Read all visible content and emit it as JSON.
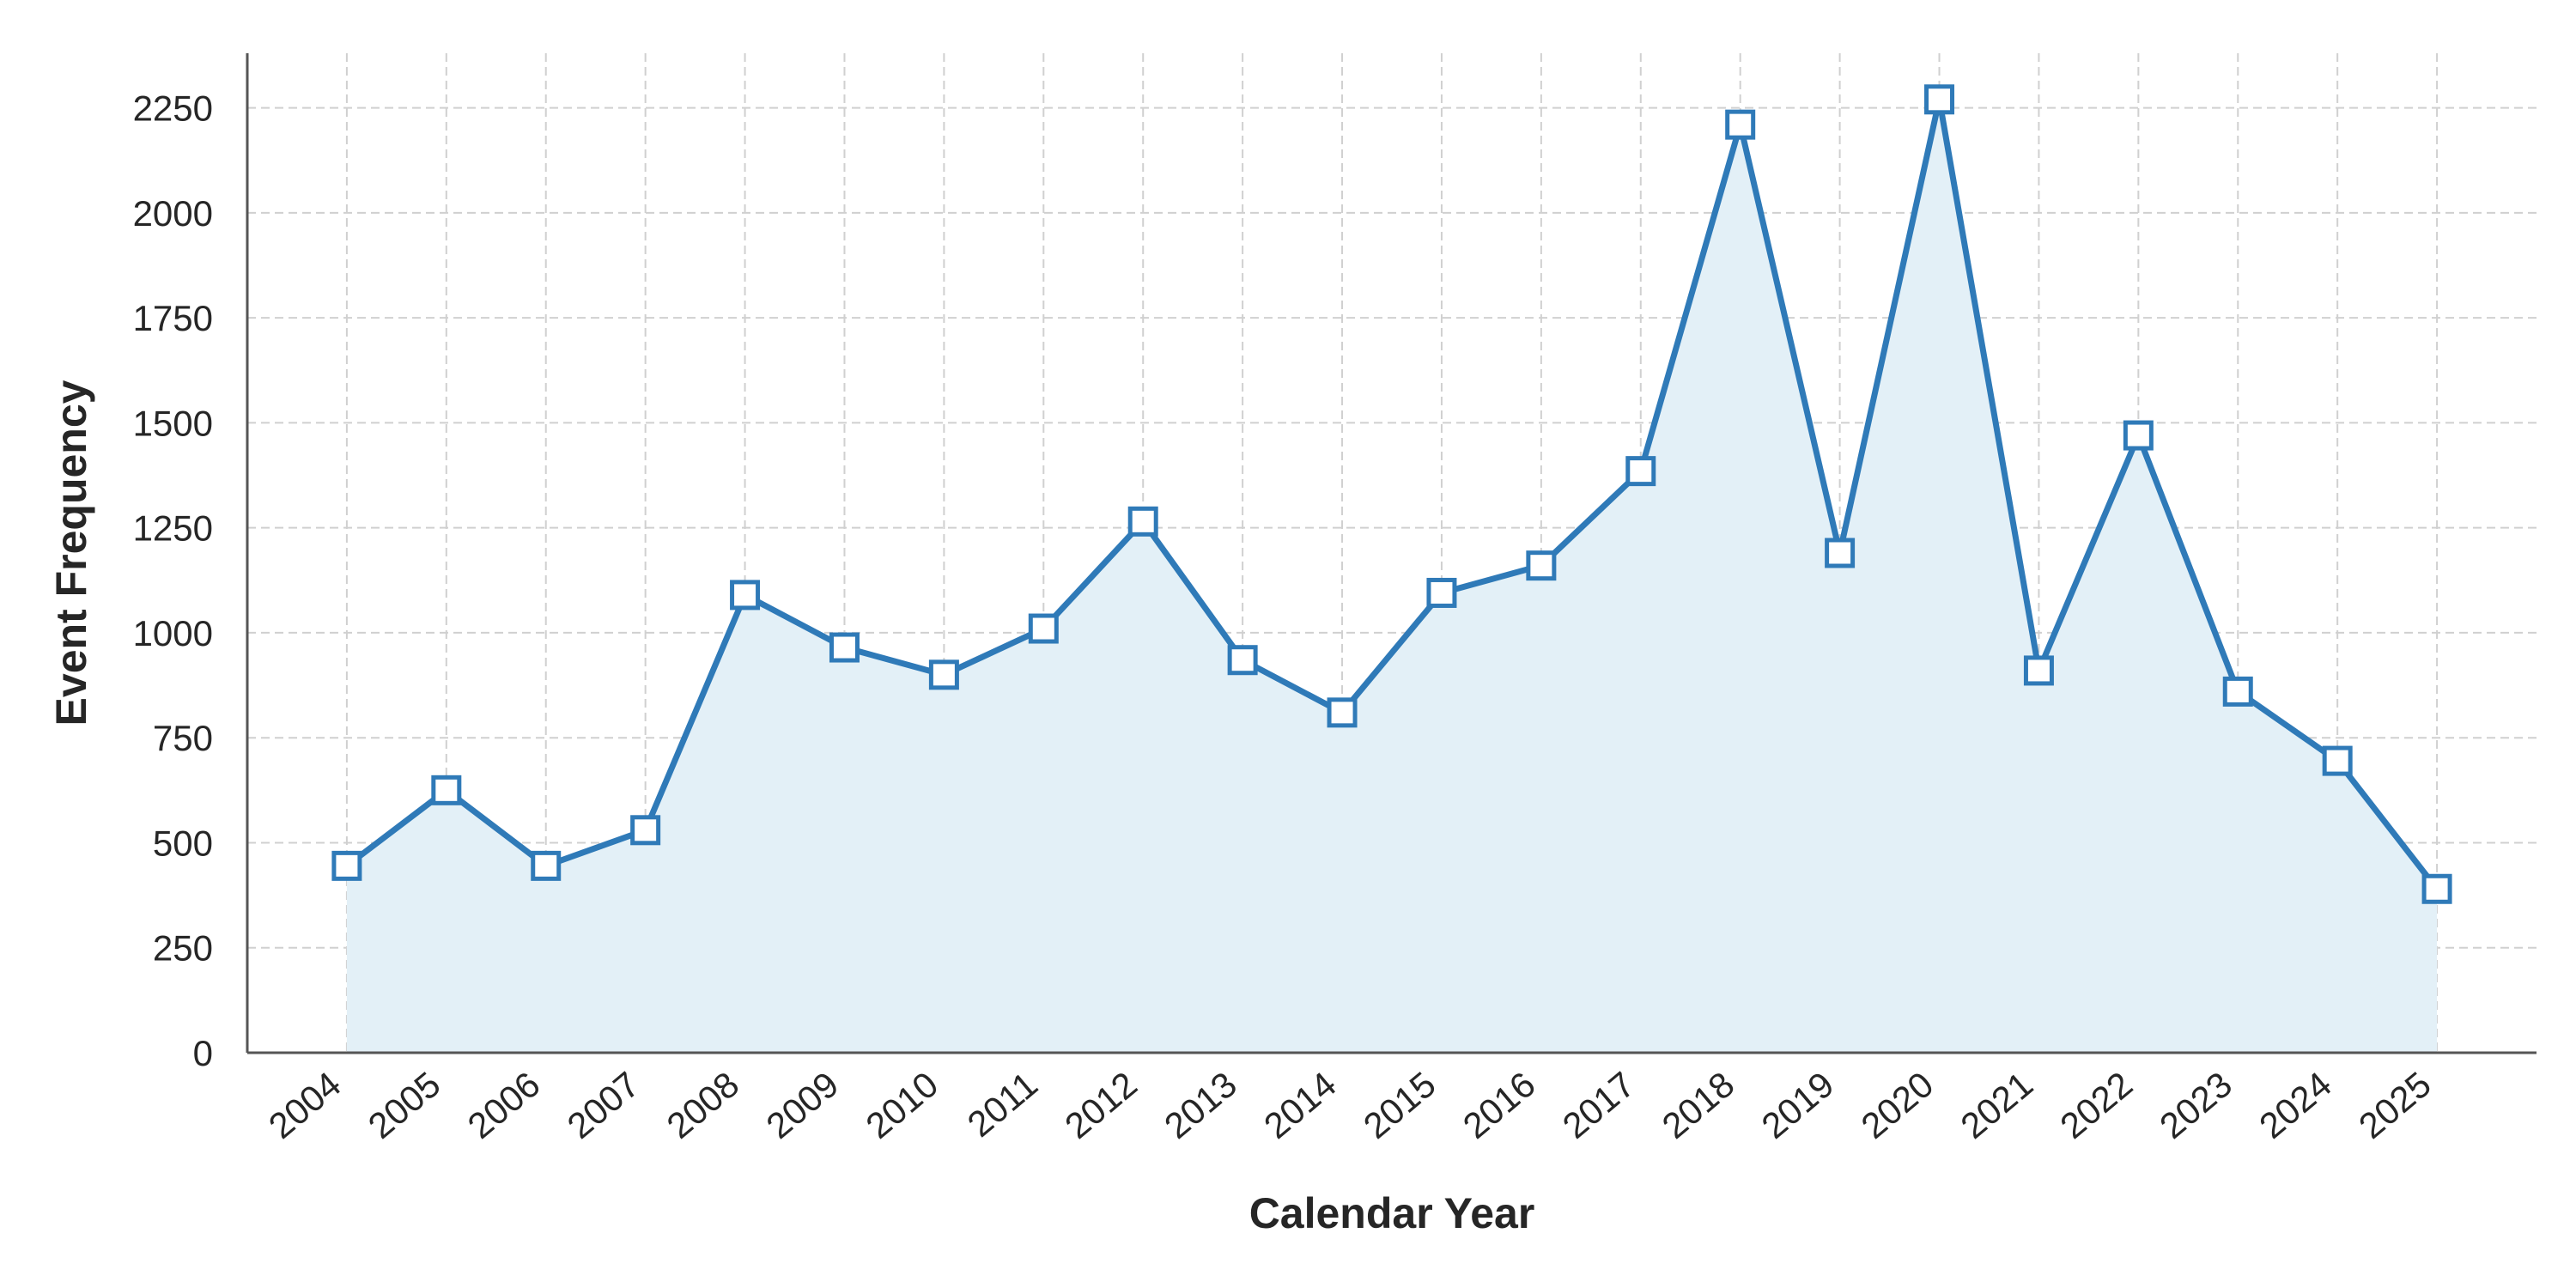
{
  "chart_data": {
    "type": "area",
    "title": "",
    "xlabel": "Calendar Year",
    "ylabel": "Event Frequency",
    "ylim": [
      0,
      2380
    ],
    "xlim": [
      2003,
      2026
    ],
    "yticks": [
      0,
      250,
      500,
      750,
      1000,
      1250,
      1500,
      1750,
      2000,
      2250
    ],
    "grid": true,
    "legend": "none",
    "x": [
      2004,
      2005,
      2006,
      2007,
      2008,
      2009,
      2010,
      2011,
      2012,
      2013,
      2014,
      2015,
      2016,
      2017,
      2018,
      2019,
      2020,
      2021,
      2022,
      2023,
      2024,
      2025
    ],
    "x_tick_labels": [
      "2004",
      "2005",
      "2006",
      "2007",
      "2008",
      "2009",
      "2010",
      "2011",
      "2012",
      "2013",
      "2014",
      "2015",
      "2016",
      "2017",
      "2018",
      "2019",
      "2020",
      "2021",
      "2022",
      "2023",
      "2024",
      "2025"
    ],
    "series": [
      {
        "values": [
          445,
          625,
          445,
          530,
          1090,
          965,
          900,
          1010,
          1265,
          935,
          810,
          1095,
          1160,
          1385,
          2210,
          1190,
          2270,
          910,
          1470,
          860,
          695,
          390
        ],
        "line_color": "#2f7ab8",
        "fill_color": "#e3f0f7",
        "marker": "square"
      }
    ]
  }
}
